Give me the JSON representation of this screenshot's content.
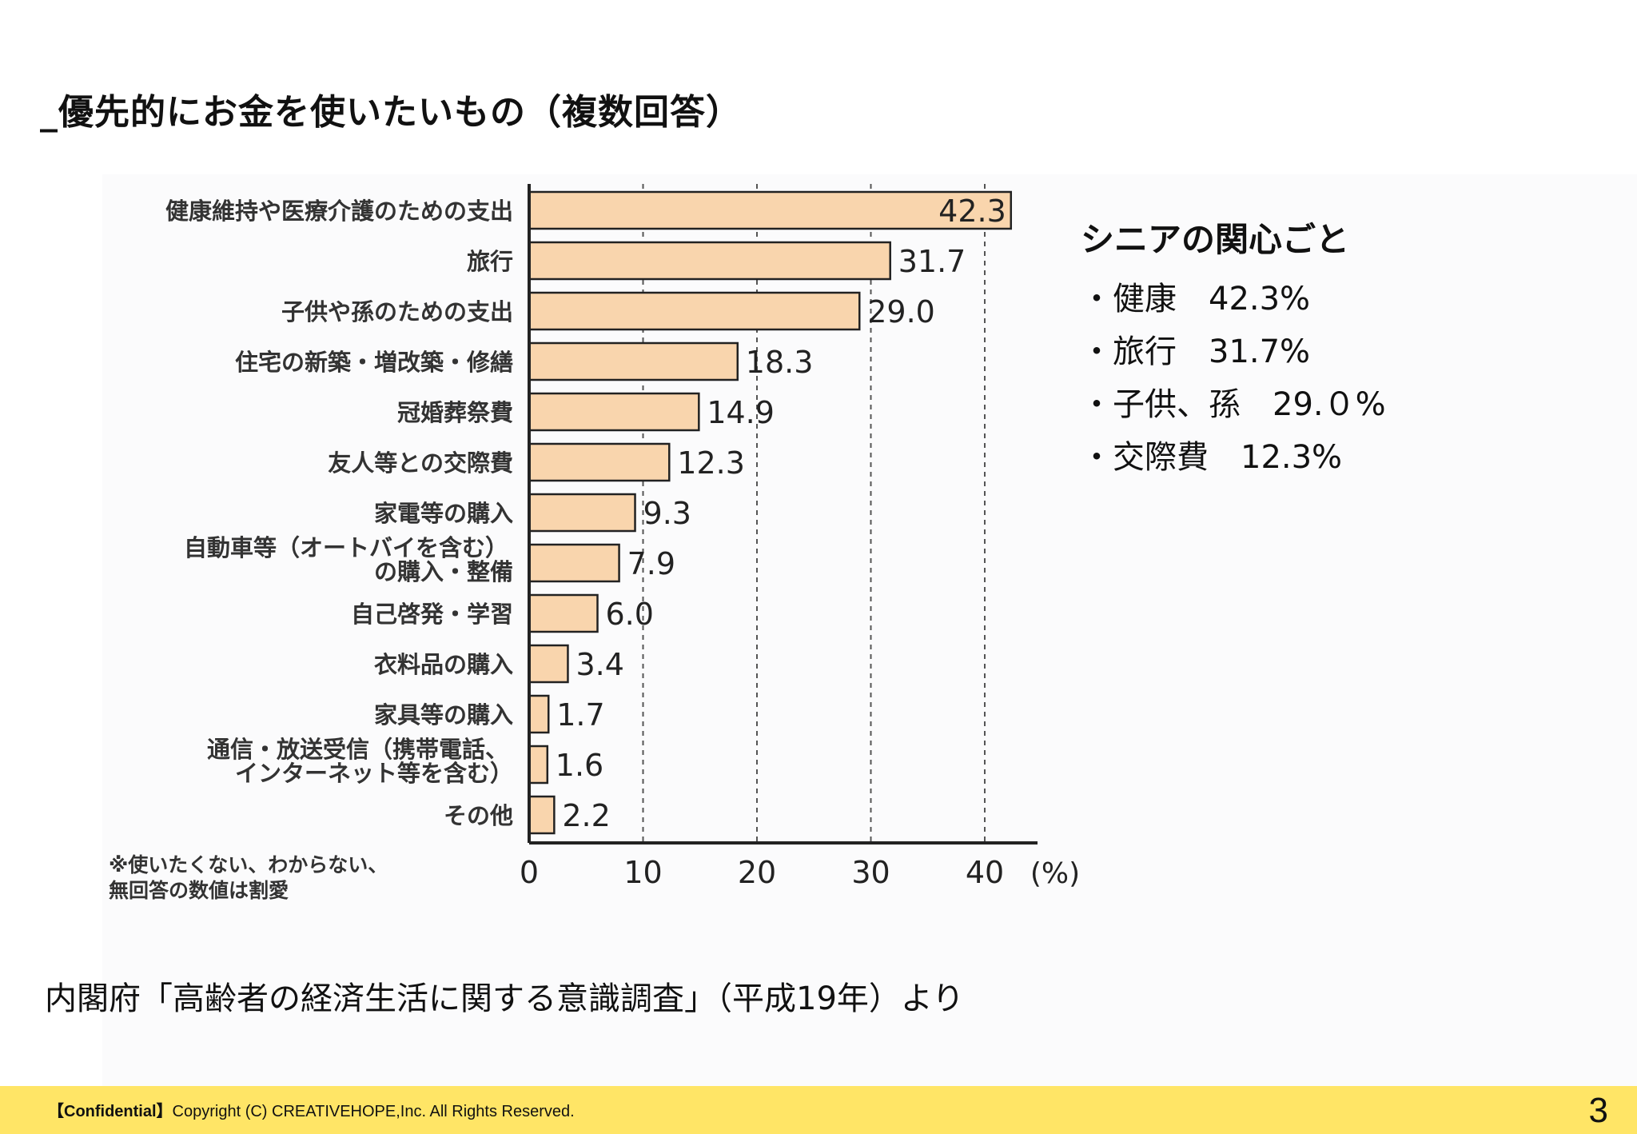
{
  "page": {
    "title": "_優先的にお金を使いたいもの（複数回答）",
    "source": "内閣府「高齢者の経済生活に関する意識調査」（平成19年）より"
  },
  "side": {
    "title": "シニアの関心ごと",
    "items": [
      "・健康　42.3%",
      "・旅行　31.7%",
      "・子供、孫　29.０%",
      "・交際費　12.3%"
    ]
  },
  "chart_data": {
    "type": "bar",
    "orientation": "horizontal",
    "categories": [
      [
        "健康維持や医療介護のための支出"
      ],
      [
        "旅行"
      ],
      [
        "子供や孫のための支出"
      ],
      [
        "住宅の新築・増改築・修繕"
      ],
      [
        "冠婚葬祭費"
      ],
      [
        "友人等との交際費"
      ],
      [
        "家電等の購入"
      ],
      [
        "自動車等（オートバイを含む）",
        "の購入・整備"
      ],
      [
        "自己啓発・学習"
      ],
      [
        "衣料品の購入"
      ],
      [
        "家具等の購入"
      ],
      [
        "通信・放送受信（携帯電話、",
        "インターネット等を含む）"
      ],
      [
        "その他"
      ]
    ],
    "values": [
      42.3,
      31.7,
      29.0,
      18.3,
      14.9,
      12.3,
      9.3,
      7.9,
      6.0,
      3.4,
      1.7,
      1.6,
      2.2
    ],
    "value_labels": [
      "42.3",
      "31.7",
      "29.0",
      "18.3",
      "14.9",
      "12.3",
      "9.3",
      "7.9",
      "6.0",
      "3.4",
      "1.7",
      "1.6",
      "2.2"
    ],
    "xlim": [
      0,
      40
    ],
    "xticks": [
      0,
      10,
      20,
      30,
      40
    ],
    "xtick_labels": [
      "0",
      "10",
      "20",
      "30",
      "40"
    ],
    "x_unit": "(%)",
    "grid": "dashed vertical",
    "bar_color": "#f9d5ad",
    "bar_edge_color": "#222222",
    "note": [
      "※使いたくない、わからない、",
      "無回答の数値は割愛"
    ]
  },
  "footer": {
    "confidential": "【Confidential】",
    "copyright": "Copyright (C) CREATIVEHOPE,Inc. All Rights Reserved.",
    "page_number": "3",
    "color": "#ffe566"
  }
}
